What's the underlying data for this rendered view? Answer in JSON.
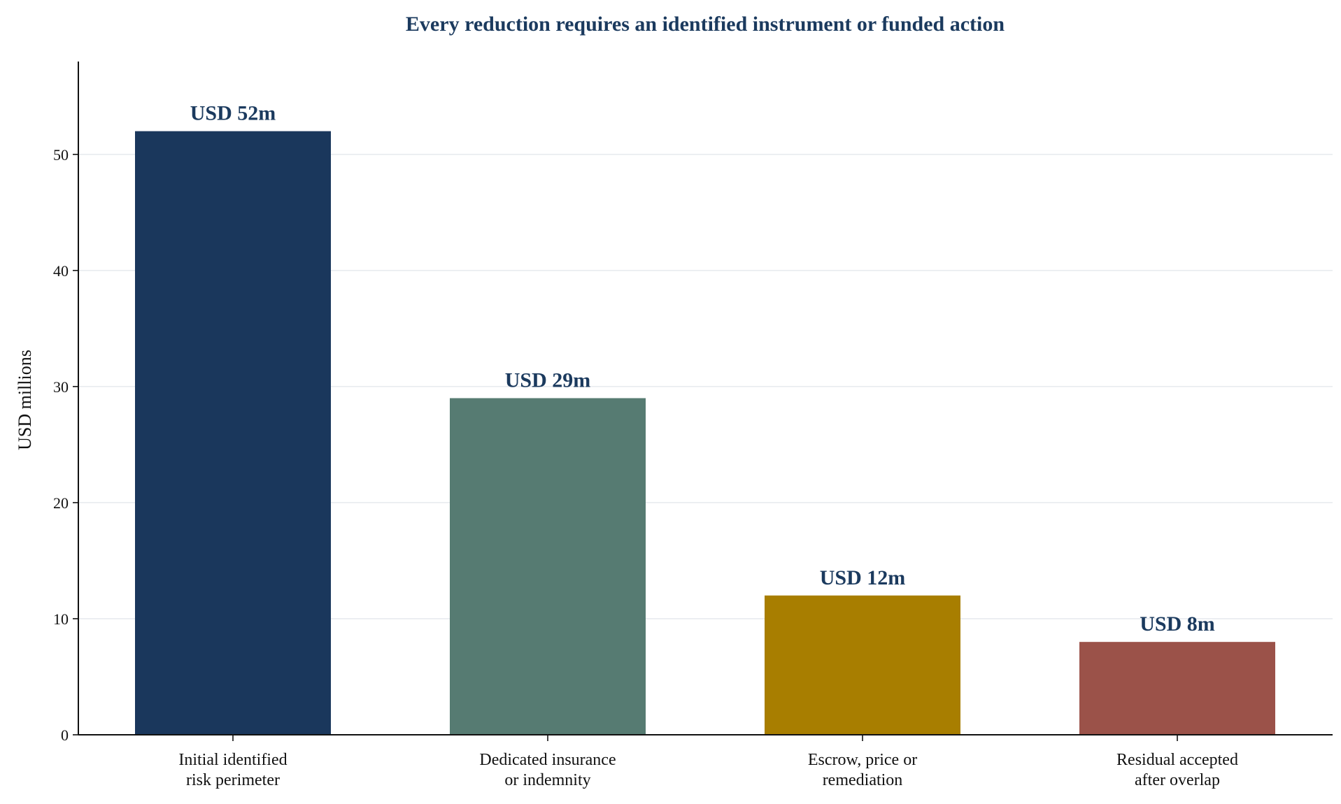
{
  "chart_data": {
    "type": "bar",
    "title": "Every reduction requires an identified instrument or funded action",
    "ylabel": "USD millions",
    "xlabel": "",
    "ylim": [
      0,
      58
    ],
    "yticks": [
      0,
      10,
      20,
      30,
      40,
      50
    ],
    "grid": "horizontal",
    "legend": "none",
    "categories": [
      [
        "Initial identified",
        "risk perimeter"
      ],
      [
        "Dedicated insurance",
        "or indemnity"
      ],
      [
        "Escrow, price or",
        "remediation"
      ],
      [
        "Residual accepted",
        "after overlap"
      ]
    ],
    "values": [
      52,
      29,
      12,
      8
    ],
    "data_labels": [
      "USD 52m",
      "USD 29m",
      "USD 12m",
      "USD 8m"
    ],
    "colors": [
      "#1a375c",
      "#567b72",
      "#a87e00",
      "#9b5249"
    ],
    "label_color": "#1b3a5e"
  }
}
